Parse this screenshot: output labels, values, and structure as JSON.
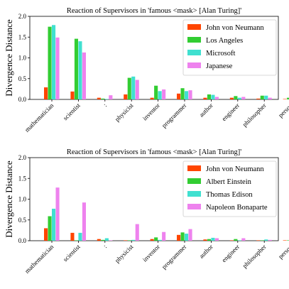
{
  "chart_data": [
    {
      "type": "bar",
      "title": "Reaction of Supervisors in 'famous <mask> [Alan Turing]'",
      "ylabel": "Divergence Distance",
      "xlabel": "",
      "ylim": [
        0,
        2.0
      ],
      "yticks": [
        "0.0",
        "0.5",
        "1.0",
        "1.5",
        "2.0"
      ],
      "categories": [
        "mathematician",
        "scientist",
        ":",
        "physicist",
        "inventor",
        "programmer",
        "author",
        "engineer",
        "philosopher",
        "person"
      ],
      "legend_position": "top-right",
      "series": [
        {
          "name": "John von Neumann",
          "color": "#ff4500",
          "values": [
            0.29,
            0.19,
            0.04,
            0.12,
            0.04,
            0.14,
            0.04,
            0.04,
            0.02,
            0.01
          ]
        },
        {
          "name": "Los Angeles",
          "color": "#32cd32",
          "values": [
            1.75,
            1.46,
            0.02,
            0.52,
            0.33,
            0.27,
            0.12,
            0.08,
            0.09,
            0.04
          ]
        },
        {
          "name": "Microsoft",
          "color": "#40e0d0",
          "values": [
            1.79,
            1.4,
            0.01,
            0.55,
            0.2,
            0.2,
            0.11,
            0.04,
            0.09,
            0.03
          ]
        },
        {
          "name": "Japanese",
          "color": "#ee82ee",
          "values": [
            1.49,
            1.13,
            0.1,
            0.47,
            0.24,
            0.22,
            0.06,
            0.06,
            0.04,
            0.04
          ]
        }
      ]
    },
    {
      "type": "bar",
      "title": "Reaction of Supervisors in 'famous <mask> [Alan Turing]'",
      "ylabel": "Divergence Distance",
      "xlabel": "",
      "ylim": [
        0,
        2.0
      ],
      "yticks": [
        "0.0",
        "0.5",
        "1.0",
        "1.5",
        "2.0"
      ],
      "categories": [
        "mathematician",
        "scientist",
        ":",
        "physicist",
        "inventor",
        "programmer",
        "author",
        "engineer",
        "philosopher",
        "person"
      ],
      "legend_position": "top-right",
      "series": [
        {
          "name": "John von Neumann",
          "color": "#ff4500",
          "values": [
            0.3,
            0.19,
            0.04,
            0.01,
            0.04,
            0.14,
            0.03,
            0.01,
            0.01,
            0.01
          ]
        },
        {
          "name": "Albert Einstein",
          "color": "#32cd32",
          "values": [
            0.59,
            0.01,
            0.02,
            0.01,
            0.08,
            0.2,
            0.04,
            0.04,
            0.01,
            0.01
          ]
        },
        {
          "name": "Thomas Edison",
          "color": "#40e0d0",
          "values": [
            0.77,
            0.19,
            0.06,
            0.02,
            0.02,
            0.17,
            0.07,
            0.01,
            0.03,
            0.01
          ]
        },
        {
          "name": "Napoleon Bonaparte",
          "color": "#ee82ee",
          "values": [
            1.28,
            0.92,
            0.01,
            0.4,
            0.21,
            0.28,
            0.06,
            0.06,
            0.02,
            0.01
          ]
        }
      ]
    }
  ]
}
